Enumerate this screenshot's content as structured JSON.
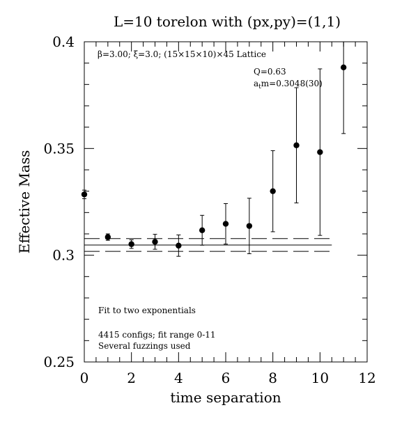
{
  "chart_data": {
    "type": "scatter",
    "title": "L=10 torelon with (px,py)=(1,1)",
    "xlabel": "time separation",
    "ylabel": "Effective Mass",
    "xlim": [
      0,
      12
    ],
    "ylim": [
      0.25,
      0.4
    ],
    "xticks": [
      "0",
      "2",
      "4",
      "6",
      "8",
      "10",
      "12"
    ],
    "yticks": [
      "0.25",
      "0.3",
      "0.35",
      "0.4"
    ],
    "annotations": {
      "lattice": "β=3.00; ξ=3.0; (15×15×10)×45 Lattice",
      "q": "Q=0.63",
      "mass_prefix": "a",
      "mass_sub": "t",
      "mass_value": "m=0.3048(30)",
      "fit": "Fit to two exponentials",
      "configs": "4415 configs; fit range 0-11",
      "fuzzings": "Several fuzzings used"
    },
    "points": [
      {
        "x": 0,
        "y": 0.3285,
        "err": 0.002
      },
      {
        "x": 1,
        "y": 0.3085,
        "err": 0.0015
      },
      {
        "x": 2,
        "y": 0.3052,
        "err": 0.002
      },
      {
        "x": 3,
        "y": 0.3063,
        "err": 0.0035
      },
      {
        "x": 4,
        "y": 0.3045,
        "err": 0.005
      },
      {
        "x": 5,
        "y": 0.3117,
        "err": 0.007
      },
      {
        "x": 6,
        "y": 0.3147,
        "err": 0.0095
      },
      {
        "x": 7,
        "y": 0.3137,
        "err": 0.013
      },
      {
        "x": 8,
        "y": 0.33,
        "err": 0.019
      },
      {
        "x": 9,
        "y": 0.3515,
        "err": 0.027
      },
      {
        "x": 10,
        "y": 0.3483,
        "err": 0.039
      },
      {
        "x": 11,
        "y": 0.388,
        "err": 0.031
      }
    ],
    "fit": {
      "value": 0.3048,
      "error": 0.003,
      "x_range": [
        0,
        10.5
      ]
    }
  }
}
